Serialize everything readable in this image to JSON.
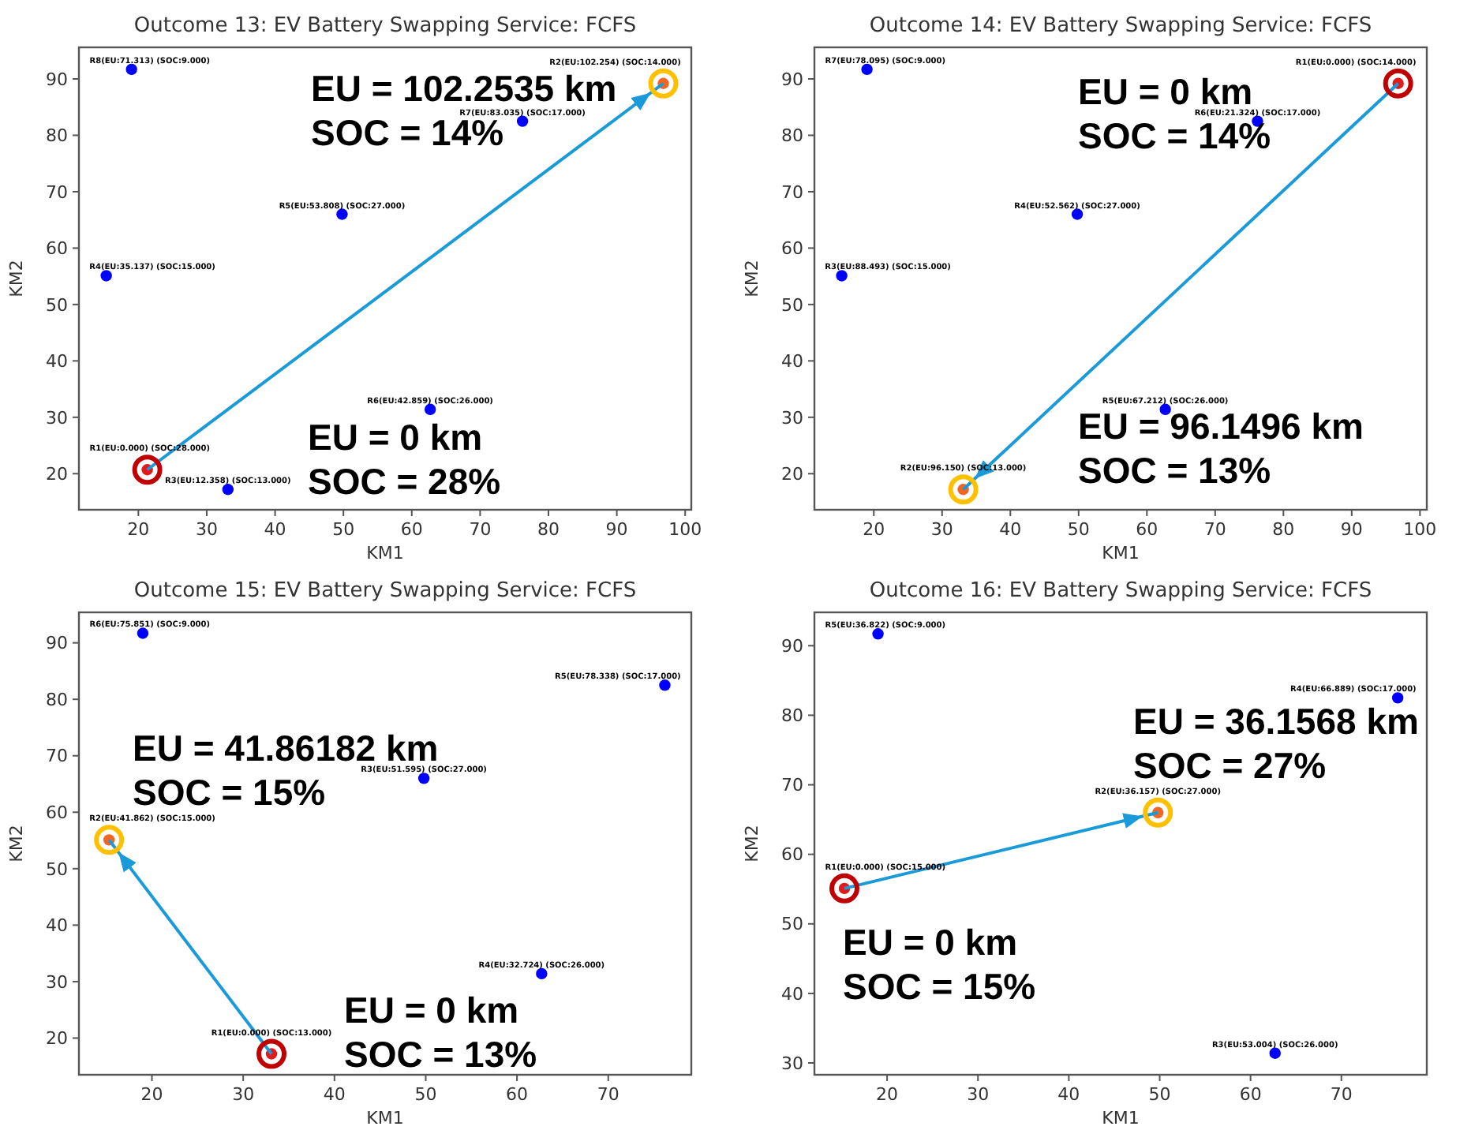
{
  "chart_data": [
    {
      "type": "scatter",
      "title": "Outcome 13: EV Battery Swapping Service: FCFS",
      "xlabel": "KM1",
      "ylabel": "KM2",
      "marker": "circle",
      "grid": false,
      "xlim": [
        11.3,
        100.9
      ],
      "ylim": [
        13.6,
        95.6
      ],
      "xticks": [
        20,
        30,
        40,
        50,
        60,
        70,
        80,
        90,
        100
      ],
      "yticks": [
        20,
        30,
        40,
        50,
        60,
        70,
        80,
        90
      ],
      "series": [
        {
          "x": [
            19.0,
            96.8,
            76.2,
            49.8,
            15.3,
            62.7,
            21.3,
            33.1
          ],
          "values": [
            91.7,
            89.2,
            82.5,
            66.0,
            55.1,
            31.4,
            20.7,
            17.2
          ],
          "colors": [
            "#0000ff",
            "#f26522",
            "#0000ff",
            "#0000ff",
            "#0000ff",
            "#0000ff",
            "#e31a1c",
            "#0000ff"
          ],
          "value_labels": [
            "R8(EU:71.313)  (SOC:9.000)",
            "R2(EU:102.254)  (SOC:14.000)",
            "R7(EU:83.035)  (SOC:17.000)",
            "R5(EU:53.808)  (SOC:27.000)",
            "R4(EU:35.137)  (SOC:15.000)",
            "R6(EU:42.859)  (SOC:26.000)",
            "R1(EU:0.000)  (SOC:28.000)",
            "R3(EU:12.358)  (SOC:13.000)"
          ]
        },
        {
          "type": "line",
          "x": [
            21.3,
            96.8
          ],
          "values": [
            20.7,
            89.2
          ],
          "color": "#1a9ad9"
        }
      ],
      "annotations": [
        "EU = 0 km\nSOC = 28%",
        "EU = 102.2535 km\nSOC = 14%"
      ]
    },
    {
      "type": "scatter",
      "title": "Outcome 14: EV Battery Swapping Service: FCFS",
      "xlabel": "KM1",
      "ylabel": "KM2",
      "marker": "circle",
      "grid": false,
      "xlim": [
        11.3,
        101.0
      ],
      "ylim": [
        13.6,
        95.6
      ],
      "xticks": [
        20,
        30,
        40,
        50,
        60,
        70,
        80,
        90,
        100
      ],
      "yticks": [
        20,
        30,
        40,
        50,
        60,
        70,
        80,
        90
      ],
      "series": [
        {
          "x": [
            19.0,
            96.8,
            76.2,
            49.8,
            15.3,
            62.7,
            33.1
          ],
          "values": [
            91.7,
            89.2,
            82.5,
            66.0,
            55.1,
            31.4,
            17.2
          ],
          "colors": [
            "#0000ff",
            "#e31a1c",
            "#0000ff",
            "#0000ff",
            "#0000ff",
            "#0000ff",
            "#f26522"
          ],
          "value_labels": [
            "R7(EU:78.095)  (SOC:9.000)",
            "R1(EU:0.000)  (SOC:14.000)",
            "R6(EU:21.324)  (SOC:17.000)",
            "R4(EU:52.562)  (SOC:27.000)",
            "R3(EU:88.493)  (SOC:15.000)",
            "R5(EU:67.212)  (SOC:26.000)",
            "R2(EU:96.150)  (SOC:13.000)"
          ]
        },
        {
          "type": "line",
          "x": [
            96.8,
            33.1
          ],
          "values": [
            89.2,
            17.2
          ],
          "color": "#1a9ad9"
        }
      ],
      "annotations": [
        "EU = 0 km\nSOC = 14%",
        "EU = 96.1496 km\nSOC = 13%"
      ]
    },
    {
      "type": "scatter",
      "title": "Outcome 15: EV Battery Swapping Service: FCFS",
      "xlabel": "KM1",
      "ylabel": "KM2",
      "marker": "circle",
      "grid": false,
      "xlim": [
        12.0,
        79.1
      ],
      "ylim": [
        13.5,
        95.4
      ],
      "xticks": [
        20,
        30,
        40,
        50,
        60,
        70
      ],
      "yticks": [
        20,
        30,
        40,
        50,
        60,
        70,
        80,
        90
      ],
      "series": [
        {
          "x": [
            19.0,
            76.2,
            49.8,
            15.3,
            62.7,
            33.1
          ],
          "values": [
            91.7,
            82.5,
            66.0,
            55.1,
            31.4,
            17.2
          ],
          "colors": [
            "#0000ff",
            "#0000ff",
            "#0000ff",
            "#f26522",
            "#0000ff",
            "#e31a1c"
          ],
          "value_labels": [
            "R6(EU:75.851)  (SOC:9.000)",
            "R5(EU:78.338)  (SOC:17.000)",
            "R3(EU:51.595)  (SOC:27.000)",
            "R2(EU:41.862)  (SOC:15.000)",
            "R4(EU:32.724)  (SOC:26.000)",
            "R1(EU:0.000)  (SOC:13.000)"
          ]
        },
        {
          "type": "line",
          "x": [
            33.1,
            15.3
          ],
          "values": [
            17.2,
            55.1
          ],
          "color": "#1a9ad9"
        }
      ],
      "annotations": [
        "EU = 0 km\nSOC = 13%",
        "EU = 41.86182 km\nSOC = 15%"
      ]
    },
    {
      "type": "scatter",
      "title": "Outcome 16: EV Battery Swapping Service: FCFS",
      "xlabel": "KM1",
      "ylabel": "KM2",
      "marker": "circle",
      "grid": false,
      "xlim": [
        12.0,
        79.4
      ],
      "ylim": [
        28.3,
        94.8
      ],
      "xticks": [
        20,
        30,
        40,
        50,
        60,
        70
      ],
      "yticks": [
        30,
        40,
        50,
        60,
        70,
        80,
        90
      ],
      "series": [
        {
          "x": [
            19.0,
            76.2,
            49.8,
            15.3,
            62.7
          ],
          "values": [
            91.7,
            82.5,
            66.0,
            55.1,
            31.4
          ],
          "colors": [
            "#0000ff",
            "#0000ff",
            "#f26522",
            "#e31a1c",
            "#0000ff"
          ],
          "value_labels": [
            "R5(EU:36.822)  (SOC:9.000)",
            "R4(EU:66.889)  (SOC:17.000)",
            "R2(EU:36.157)  (SOC:27.000)",
            "R1(EU:0.000)  (SOC:15.000)",
            "R3(EU:53.004)  (SOC:26.000)"
          ]
        },
        {
          "type": "line",
          "x": [
            15.3,
            49.8
          ],
          "values": [
            55.1,
            66.0
          ],
          "color": "#1a9ad9"
        }
      ],
      "annotations": [
        "EU = 0 km\nSOC = 15%",
        "EU = 36.1568 km\nSOC = 27%"
      ]
    }
  ]
}
